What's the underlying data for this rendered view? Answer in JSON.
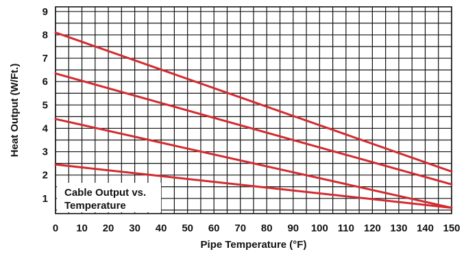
{
  "chart_data": {
    "type": "line",
    "title": "",
    "annotation": [
      "Cable Output vs.",
      "Temperature"
    ],
    "xlabel": "Pipe Temperature (°F)",
    "ylabel": "Heat Output (W/Ft.)",
    "xlim": [
      0,
      150
    ],
    "ylim": [
      0.35,
      9.2
    ],
    "x_ticks": [
      "0",
      "10",
      "20",
      "30",
      "40",
      "50",
      "60",
      "70",
      "80",
      "90",
      "100",
      "110",
      "120",
      "130",
      "140",
      "150"
    ],
    "y_ticks": [
      "1",
      "2",
      "3",
      "4",
      "5",
      "6",
      "7",
      "8",
      "9"
    ],
    "grid": true,
    "line_color": "#d42a2f",
    "series": [
      {
        "x": [
          0,
          150
        ],
        "y": [
          8.1,
          2.15
        ]
      },
      {
        "x": [
          0,
          150
        ],
        "y": [
          6.35,
          1.6
        ]
      },
      {
        "x": [
          0,
          150
        ],
        "y": [
          4.4,
          0.6
        ]
      },
      {
        "x": [
          0,
          150
        ],
        "y": [
          2.45,
          0.6
        ]
      }
    ]
  }
}
